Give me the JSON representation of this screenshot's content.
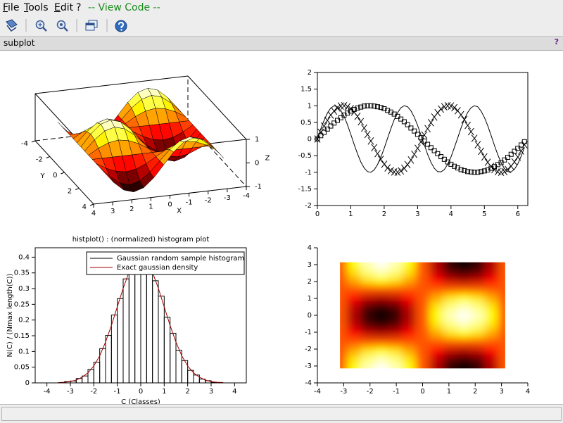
{
  "menu": [
    "File",
    "Tools",
    "Edit",
    "?"
  ],
  "view_code": "-- View Code --",
  "window_title": "subplot",
  "help_label": "?",
  "chart_data": [
    {
      "type": "surface",
      "xlabel": "X",
      "ylabel": "Y",
      "zlabel": "Z",
      "colormap": "hot",
      "x": [
        -3.14,
        -2.62,
        -2.09,
        -1.57,
        -1.05,
        -0.52,
        0,
        0.52,
        1.05,
        1.57,
        2.09,
        2.62,
        3.14
      ],
      "y": [
        -3.14,
        -2.62,
        -2.09,
        -1.57,
        -1.05,
        -0.52,
        0,
        0.52,
        1.05,
        1.57,
        2.09,
        2.62,
        3.14
      ],
      "z": [
        [
          0,
          0.5,
          0.87,
          1,
          0.87,
          0.5,
          0,
          -0.5,
          -0.87,
          -1,
          -0.87,
          -0.5,
          0
        ],
        [
          0,
          0.43,
          0.75,
          0.87,
          0.75,
          0.43,
          0,
          -0.43,
          -0.75,
          -0.87,
          -0.75,
          -0.43,
          0
        ],
        [
          0,
          0.25,
          0.43,
          0.5,
          0.43,
          0.25,
          0,
          -0.25,
          -0.43,
          -0.5,
          -0.43,
          -0.25,
          0
        ],
        [
          0,
          0,
          0,
          0,
          0,
          0,
          0,
          0,
          0,
          0,
          0,
          0,
          0
        ],
        [
          0,
          -0.25,
          -0.43,
          -0.5,
          -0.43,
          -0.25,
          0,
          0.25,
          0.43,
          0.5,
          0.43,
          0.25,
          0
        ],
        [
          0,
          -0.43,
          -0.75,
          -0.87,
          -0.75,
          -0.43,
          0,
          0.43,
          0.75,
          0.87,
          0.75,
          0.43,
          0
        ],
        [
          0,
          -0.5,
          -0.87,
          -1,
          -0.87,
          -0.5,
          0,
          0.5,
          0.87,
          1,
          0.87,
          0.5,
          0
        ],
        [
          0,
          -0.43,
          -0.75,
          -0.87,
          -0.75,
          -0.43,
          0,
          0.43,
          0.75,
          0.87,
          0.75,
          0.43,
          0
        ],
        [
          0,
          -0.25,
          -0.43,
          -0.5,
          -0.43,
          -0.25,
          0,
          0.25,
          0.43,
          0.5,
          0.43,
          0.25,
          0
        ],
        [
          0,
          0,
          0,
          0,
          0,
          0,
          0,
          0,
          0,
          0,
          0,
          0,
          0
        ],
        [
          0,
          0.25,
          0.43,
          0.5,
          0.43,
          0.25,
          0,
          -0.25,
          -0.43,
          -0.5,
          -0.43,
          -0.25,
          0
        ],
        [
          0,
          0.43,
          0.75,
          0.87,
          0.75,
          0.43,
          0,
          -0.43,
          -0.75,
          -0.87,
          -0.75,
          -0.43,
          0
        ],
        [
          0,
          0.5,
          0.87,
          1,
          0.87,
          0.5,
          0,
          -0.5,
          -0.87,
          -1,
          -0.87,
          -0.5,
          0
        ]
      ],
      "xlim": [
        -4,
        4
      ],
      "ylim": [
        -4,
        4
      ],
      "zlim": [
        -1,
        1
      ],
      "xticks": [
        -4,
        -3,
        -2,
        -1,
        0,
        1,
        2,
        3,
        4
      ],
      "yticks": [
        -4,
        -2,
        0,
        2,
        4
      ],
      "zticks": [
        -1,
        0,
        1
      ]
    },
    {
      "type": "line",
      "x": [
        0,
        0.1,
        0.2,
        0.3,
        0.4,
        0.5,
        0.6,
        0.7,
        0.8,
        0.9,
        1,
        1.1,
        1.2,
        1.3,
        1.4,
        1.5,
        1.6,
        1.7,
        1.8,
        1.9,
        2,
        2.1,
        2.2,
        2.3,
        2.4,
        2.5,
        2.6,
        2.7,
        2.8,
        2.9,
        3,
        3.1,
        3.2,
        3.3,
        3.4,
        3.5,
        3.6,
        3.7,
        3.8,
        3.9,
        4,
        4.1,
        4.2,
        4.3,
        4.4,
        4.5,
        4.6,
        4.7,
        4.8,
        4.9,
        5,
        5.1,
        5.2,
        5.3,
        5.4,
        5.5,
        5.6,
        5.7,
        5.8,
        5.9,
        6,
        6.1,
        6.2
      ],
      "series": [
        {
          "color": "#000000",
          "marker": "square",
          "values": [
            0,
            0.1,
            0.2,
            0.3,
            0.39,
            0.48,
            0.56,
            0.64,
            0.72,
            0.78,
            0.84,
            0.89,
            0.93,
            0.96,
            0.99,
            1,
            1,
            0.99,
            0.97,
            0.95,
            0.91,
            0.86,
            0.81,
            0.75,
            0.68,
            0.6,
            0.52,
            0.43,
            0.33,
            0.24,
            0.14,
            0.04,
            -0.06,
            -0.16,
            -0.26,
            -0.35,
            -0.44,
            -0.53,
            -0.61,
            -0.69,
            -0.76,
            -0.82,
            -0.87,
            -0.92,
            -0.95,
            -0.98,
            -0.99,
            -1,
            -1,
            -0.98,
            -0.96,
            -0.93,
            -0.88,
            -0.83,
            -0.77,
            -0.71,
            -0.63,
            -0.55,
            -0.46,
            -0.37,
            -0.28,
            -0.18,
            -0.08
          ]
        },
        {
          "color": "#000000",
          "marker": "cross",
          "values": [
            0,
            0.2,
            0.39,
            0.56,
            0.72,
            0.84,
            0.93,
            0.99,
            1,
            0.97,
            0.91,
            0.81,
            0.68,
            0.52,
            0.33,
            0.14,
            -0.06,
            -0.26,
            -0.44,
            -0.61,
            -0.76,
            -0.87,
            -0.95,
            -0.99,
            -1,
            -0.96,
            -0.88,
            -0.77,
            -0.63,
            -0.46,
            -0.28,
            -0.08,
            0.12,
            0.31,
            0.49,
            0.66,
            0.79,
            0.9,
            0.97,
            1,
            0.99,
            0.94,
            0.85,
            0.73,
            0.58,
            0.41,
            0.22,
            0.02,
            -0.17,
            -0.37,
            -0.54,
            -0.7,
            -0.83,
            -0.92,
            -0.98,
            -1,
            -0.98,
            -0.92,
            -0.82,
            -0.69,
            -0.54,
            -0.36,
            -0.17
          ]
        },
        {
          "color": "#000000",
          "marker": "none",
          "values": [
            0,
            0.3,
            0.56,
            0.78,
            0.93,
            1,
            0.97,
            0.86,
            0.68,
            0.43,
            0.14,
            -0.16,
            -0.44,
            -0.69,
            -0.87,
            -0.98,
            -1,
            -0.93,
            -0.77,
            -0.55,
            -0.28,
            0.02,
            0.31,
            0.58,
            0.79,
            0.94,
            1,
            0.97,
            0.85,
            0.66,
            0.41,
            0.12,
            -0.17,
            -0.46,
            -0.7,
            -0.88,
            -0.98,
            -0.99,
            -0.92,
            -0.76,
            -0.54,
            -0.26,
            0.03,
            0.33,
            0.59,
            0.8,
            0.94,
            1,
            0.97,
            0.84,
            0.65,
            0.4,
            0.11,
            -0.19,
            -0.47,
            -0.71,
            -0.89,
            -0.98,
            -0.99,
            -0.91,
            -0.75,
            -0.52,
            -0.25
          ]
        }
      ],
      "xlim": [
        0,
        6.3
      ],
      "ylim": [
        -2,
        2
      ],
      "xticks": [
        0,
        1,
        2,
        3,
        4,
        5,
        6
      ],
      "yticks": [
        -2,
        -1.5,
        -1,
        -0.5,
        0,
        0.5,
        1,
        1.5,
        2
      ]
    },
    {
      "type": "histogram",
      "title": "histplot() : (normalized) histogram plot",
      "xlabel": "C (Classes)",
      "ylabel": "N(C) / (Nmax length(C))",
      "legend": "upper right",
      "bins": [
        -3.5,
        -3.25,
        -3,
        -2.75,
        -2.5,
        -2.25,
        -2,
        -1.75,
        -1.5,
        -1.25,
        -1,
        -0.75,
        -0.5,
        -0.25,
        0,
        0.25,
        0.5,
        0.75,
        1,
        1.25,
        1.5,
        1.75,
        2,
        2.25,
        2.5,
        2.75,
        3,
        3.25,
        3.5
      ],
      "series": [
        {
          "name": "Gaussian random sample histogram",
          "color": "#000000",
          "values": [
            0.001,
            0.004,
            0.006,
            0.014,
            0.022,
            0.043,
            0.066,
            0.109,
            0.151,
            0.216,
            0.268,
            0.331,
            0.368,
            0.401,
            0.393,
            0.375,
            0.325,
            0.276,
            0.209,
            0.158,
            0.104,
            0.071,
            0.04,
            0.025,
            0.012,
            0.007,
            0.002,
            0.001
          ]
        },
        {
          "name": "Exact gaussian density",
          "color": "#a00000",
          "x": [
            -3.5,
            -3.25,
            -3,
            -2.75,
            -2.5,
            -2.25,
            -2,
            -1.75,
            -1.5,
            -1.25,
            -1,
            -0.75,
            -0.5,
            -0.25,
            0,
            0.25,
            0.5,
            0.75,
            1,
            1.25,
            1.5,
            1.75,
            2,
            2.25,
            2.5,
            2.75,
            3,
            3.25,
            3.5
          ],
          "values": [
            0.001,
            0.002,
            0.004,
            0.009,
            0.018,
            0.032,
            0.054,
            0.086,
            0.13,
            0.183,
            0.242,
            0.301,
            0.352,
            0.387,
            0.399,
            0.387,
            0.352,
            0.301,
            0.242,
            0.183,
            0.13,
            0.086,
            0.054,
            0.032,
            0.018,
            0.009,
            0.004,
            0.002,
            0.001
          ]
        }
      ],
      "xlim": [
        -4.5,
        4.5
      ],
      "ylim": [
        0,
        0.43
      ],
      "xticks": [
        -4,
        -3,
        -2,
        -1,
        0,
        1,
        2,
        3,
        4
      ],
      "yticks": [
        0,
        0.05,
        0.1,
        0.15,
        0.2,
        0.25,
        0.3,
        0.35,
        0.4
      ]
    },
    {
      "type": "image",
      "colormap": "hot",
      "x": [
        -3.14,
        -2.62,
        -2.09,
        -1.57,
        -1.05,
        -0.52,
        0,
        0.52,
        1.05,
        1.57,
        2.09,
        2.62,
        3.14
      ],
      "y": [
        -3.14,
        -2.62,
        -2.09,
        -1.57,
        -1.05,
        -0.52,
        0,
        0.52,
        1.05,
        1.57,
        2.09,
        2.62,
        3.14
      ],
      "z": [
        [
          0,
          0.5,
          0.87,
          1,
          0.87,
          0.5,
          0,
          -0.5,
          -0.87,
          -1,
          -0.87,
          -0.5,
          0
        ],
        [
          0,
          0.43,
          0.75,
          0.87,
          0.75,
          0.43,
          0,
          -0.43,
          -0.75,
          -0.87,
          -0.75,
          -0.43,
          0
        ],
        [
          0,
          0.25,
          0.43,
          0.5,
          0.43,
          0.25,
          0,
          -0.25,
          -0.43,
          -0.5,
          -0.43,
          -0.25,
          0
        ],
        [
          0,
          0,
          0,
          0,
          0,
          0,
          0,
          0,
          0,
          0,
          0,
          0,
          0
        ],
        [
          0,
          -0.25,
          -0.43,
          -0.5,
          -0.43,
          -0.25,
          0,
          0.25,
          0.43,
          0.5,
          0.43,
          0.25,
          0
        ],
        [
          0,
          -0.43,
          -0.75,
          -0.87,
          -0.75,
          -0.43,
          0,
          0.43,
          0.75,
          0.87,
          0.75,
          0.43,
          0
        ],
        [
          0,
          -0.5,
          -0.87,
          -1,
          -0.87,
          -0.5,
          0,
          0.5,
          0.87,
          1,
          0.87,
          0.5,
          0
        ],
        [
          0,
          -0.43,
          -0.75,
          -0.87,
          -0.75,
          -0.43,
          0,
          0.43,
          0.75,
          0.87,
          0.75,
          0.43,
          0
        ],
        [
          0,
          -0.25,
          -0.43,
          -0.5,
          -0.43,
          -0.25,
          0,
          0.25,
          0.43,
          0.5,
          0.43,
          0.25,
          0
        ],
        [
          0,
          0,
          0,
          0,
          0,
          0,
          0,
          0,
          0,
          0,
          0,
          0,
          0
        ],
        [
          0,
          0.25,
          0.43,
          0.5,
          0.43,
          0.25,
          0,
          -0.25,
          -0.43,
          -0.5,
          -0.43,
          -0.25,
          0
        ],
        [
          0,
          0.43,
          0.75,
          0.87,
          0.75,
          0.43,
          0,
          -0.43,
          -0.75,
          -0.87,
          -0.75,
          -0.43,
          0
        ],
        [
          0,
          0.5,
          0.87,
          1,
          0.87,
          0.5,
          0,
          -0.5,
          -0.87,
          -1,
          -0.87,
          -0.5,
          0
        ]
      ],
      "zlim": [
        -1,
        1
      ],
      "xlim": [
        -4,
        4
      ],
      "ylim": [
        -4,
        4
      ],
      "xticks": [
        -4,
        -3,
        -2,
        -1,
        0,
        1,
        2,
        3,
        4
      ],
      "yticks": [
        -4,
        -3,
        -2,
        -1,
        0,
        1,
        2,
        3,
        4
      ]
    }
  ]
}
